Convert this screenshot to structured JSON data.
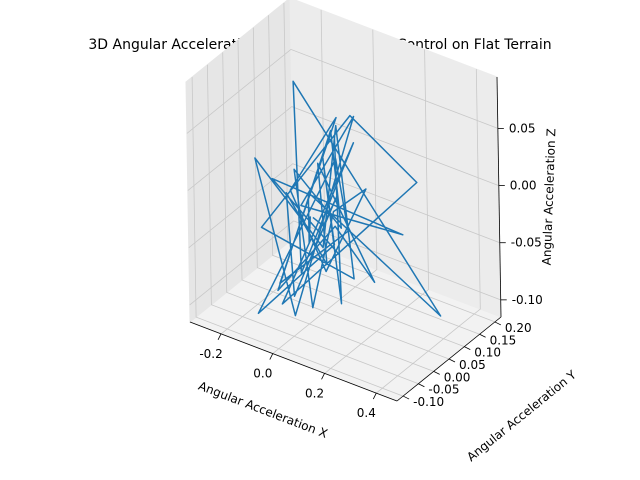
{
  "chart_data": {
    "type": "line",
    "projection": "3d",
    "title": "3D Angular Acceleration Plot for Predefined Control on Flat Terrain",
    "xlabel": "Angular Acceleration X",
    "ylabel": "Angular Acceleration Y",
    "zlabel": "Angular Acceleration Z",
    "xlim": [
      -0.32,
      0.48
    ],
    "ylim": [
      -0.12,
      0.22
    ],
    "zlim": [
      -0.115,
      0.095
    ],
    "xticks": [
      "-0.2",
      "0.0",
      "0.2",
      "0.4"
    ],
    "yticks": [
      "-0.10",
      "-0.05",
      "0.00",
      "0.05",
      "0.10",
      "0.15",
      "0.20"
    ],
    "zticks": [
      "-0.10",
      "-0.05",
      "0.00",
      "0.05"
    ],
    "grid": true,
    "line_color": "#1f77b4",
    "series": [
      {
        "x": [
          0.01,
          -0.02,
          0.04,
          0.45,
          -0.06,
          0.02,
          0.11,
          -0.08,
          0.33,
          0.05,
          -0.12,
          0.14,
          -0.03,
          0.07,
          -0.25,
          0.03,
          0.1,
          -0.05,
          0.2,
          -0.1,
          0.06,
          0.0,
          0.15,
          -0.07,
          0.09,
          -0.15,
          0.04,
          0.12,
          -0.04,
          0.02,
          -0.09,
          0.08,
          0.18,
          -0.02,
          0.05,
          -0.11,
          0.13,
          0.01,
          -0.06,
          0.07,
          0.28,
          -0.03,
          0.06,
          -0.13,
          0.04,
          0.09,
          0.0,
          0.02
        ],
        "y": [
          0.0,
          0.02,
          -0.03,
          0.05,
          0.01,
          -0.04,
          0.06,
          -0.02,
          0.08,
          0.1,
          -0.05,
          0.03,
          0.12,
          -0.01,
          0.04,
          -0.07,
          0.07,
          0.02,
          0.14,
          -0.03,
          0.05,
          0.09,
          -0.02,
          0.11,
          0.01,
          -0.04,
          0.06,
          0.03,
          -0.06,
          0.08,
          0.02,
          -0.01,
          0.04,
          0.1,
          -0.03,
          0.05,
          0.0,
          0.07,
          -0.05,
          0.03,
          -0.02,
          0.06,
          0.01,
          0.04,
          -0.08,
          0.02,
          0.05,
          0.0
        ],
        "z": [
          -0.02,
          -0.05,
          0.01,
          -0.08,
          0.09,
          -0.06,
          0.04,
          -0.1,
          0.02,
          0.05,
          -0.03,
          -0.07,
          0.03,
          -0.04,
          0.0,
          -0.09,
          0.06,
          -0.02,
          -0.05,
          0.01,
          -0.06,
          0.03,
          -0.08,
          0.0,
          -0.04,
          -0.11,
          0.02,
          -0.03,
          -0.07,
          0.05,
          -0.01,
          -0.06,
          0.01,
          -0.04,
          -0.09,
          0.0,
          -0.02,
          0.04,
          -0.08,
          -0.03,
          -0.05,
          0.01,
          -0.06,
          -0.02,
          -0.07,
          0.0,
          -0.04,
          -0.02
        ]
      }
    ]
  }
}
